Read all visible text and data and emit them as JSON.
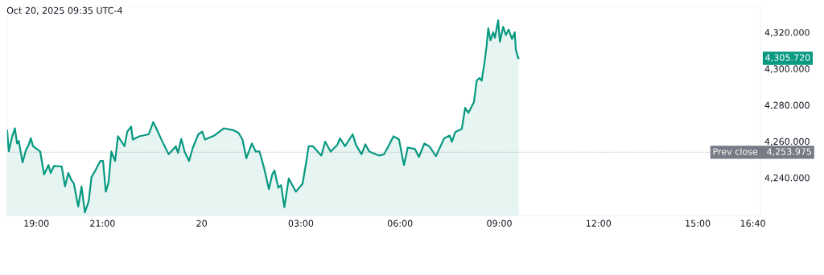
{
  "chart_data": {
    "type": "area",
    "annotations": [
      "Oct 20, 2025 09:35 UTC-4",
      "4,305.720"
    ],
    "x": [
      "2025-10-19T18:07",
      "2025-10-19T18:10",
      "2025-10-19T18:16",
      "2025-10-19T18:21",
      "2025-10-19T18:25",
      "2025-10-19T18:28",
      "2025-10-19T18:35",
      "2025-10-19T18:41",
      "2025-10-19T18:46",
      "2025-10-19T18:50",
      "2025-10-19T18:54",
      "2025-10-19T19:07",
      "2025-10-19T19:14",
      "2025-10-19T19:22",
      "2025-10-19T19:26",
      "2025-10-19T19:32",
      "2025-10-19T19:46",
      "2025-10-19T19:52",
      "2025-10-19T19:58",
      "2025-10-19T20:03",
      "2025-10-19T20:08",
      "2025-10-19T20:16",
      "2025-10-19T20:22",
      "2025-10-19T20:28",
      "2025-10-19T20:35",
      "2025-10-19T20:40",
      "2025-10-19T20:47",
      "2025-10-19T20:56",
      "2025-10-19T21:01",
      "2025-10-19T21:06",
      "2025-10-19T21:11",
      "2025-10-19T21:16",
      "2025-10-19T21:23",
      "2025-10-19T21:28",
      "2025-10-19T21:40",
      "2025-10-19T21:45",
      "2025-10-19T21:52",
      "2025-10-19T21:55",
      "2025-10-19T22:07",
      "2025-10-19T22:24",
      "2025-10-19T22:32",
      "2025-10-19T22:38",
      "2025-10-19T22:48",
      "2025-10-19T23:00",
      "2025-10-19T23:13",
      "2025-10-19T23:17",
      "2025-10-19T23:23",
      "2025-10-19T23:29",
      "2025-10-19T23:37",
      "2025-10-19T23:44",
      "2025-10-19T23:54",
      "2025-10-20T00:01",
      "2025-10-20T00:06",
      "2025-10-20T00:23",
      "2025-10-20T00:40",
      "2025-10-20T00:57",
      "2025-10-20T01:07",
      "2025-10-20T01:14",
      "2025-10-20T01:21",
      "2025-10-20T01:31",
      "2025-10-20T01:38",
      "2025-10-20T01:45",
      "2025-10-20T01:53",
      "2025-10-20T02:02",
      "2025-10-20T02:08",
      "2025-10-20T02:12",
      "2025-10-20T02:19",
      "2025-10-20T02:24",
      "2025-10-20T02:30",
      "2025-10-20T02:38",
      "2025-10-20T02:51",
      "2025-10-20T03:03",
      "2025-10-20T03:10",
      "2025-10-20T03:14",
      "2025-10-20T03:22",
      "2025-10-20T03:37",
      "2025-10-20T03:44",
      "2025-10-20T03:54",
      "2025-10-20T04:06",
      "2025-10-20T04:11",
      "2025-10-20T04:20",
      "2025-10-20T04:34",
      "2025-10-20T04:40",
      "2025-10-20T04:50",
      "2025-10-20T04:57",
      "2025-10-20T05:04",
      "2025-10-20T05:22",
      "2025-10-20T05:31",
      "2025-10-20T05:40",
      "2025-10-20T05:48",
      "2025-10-20T05:58",
      "2025-10-20T06:07",
      "2025-10-20T06:14",
      "2025-10-20T06:27",
      "2025-10-20T06:34",
      "2025-10-20T06:44",
      "2025-10-20T06:53",
      "2025-10-20T07:05",
      "2025-10-20T07:20",
      "2025-10-20T07:30",
      "2025-10-20T07:34",
      "2025-10-20T07:40",
      "2025-10-20T07:52",
      "2025-10-20T07:58",
      "2025-10-20T08:04",
      "2025-10-20T08:14",
      "2025-10-20T08:19",
      "2025-10-20T08:24",
      "2025-10-20T08:28",
      "2025-10-20T08:33",
      "2025-10-20T08:37",
      "2025-10-20T08:40",
      "2025-10-20T08:44",
      "2025-10-20T08:49",
      "2025-10-20T08:52",
      "2025-10-20T08:58",
      "2025-10-20T09:01",
      "2025-10-20T09:07",
      "2025-10-20T09:12",
      "2025-10-20T09:17",
      "2025-10-20T09:23",
      "2025-10-20T09:28",
      "2025-10-20T09:30",
      "2025-10-20T09:34",
      "2025-10-20T09:35"
    ],
    "series": [
      {
        "color": "#089981",
        "values": [
          4266.2,
          4254.5,
          4262.5,
          4267.2,
          4258.9,
          4260.3,
          4248.4,
          4255.1,
          4258.0,
          4261.7,
          4257.3,
          4254.4,
          4241.8,
          4247.0,
          4242.6,
          4246.5,
          4246.2,
          4235.2,
          4242.6,
          4239.0,
          4236.8,
          4224.1,
          4235.2,
          4220.9,
          4227.1,
          4240.3,
          4244.0,
          4249.2,
          4249.2,
          4232.3,
          4237.4,
          4254.4,
          4249.2,
          4262.8,
          4257.3,
          4265.4,
          4268.1,
          4261.0,
          4262.8,
          4263.9,
          4270.6,
          4266.9,
          4260.3,
          4252.9,
          4257.3,
          4253.6,
          4261.3,
          4254.4,
          4249.2,
          4256.6,
          4263.9,
          4265.4,
          4261.0,
          4263.2,
          4267.2,
          4266.2,
          4264.7,
          4261.0,
          4250.7,
          4258.8,
          4254.4,
          4254.4,
          4245.5,
          4233.7,
          4241.8,
          4244.0,
          4234.5,
          4235.9,
          4223.8,
          4239.6,
          4232.3,
          4236.7,
          4249.2,
          4257.3,
          4257.3,
          4252.2,
          4259.8,
          4254.4,
          4258.0,
          4261.7,
          4257.3,
          4263.9,
          4258.0,
          4252.9,
          4258.4,
          4254.4,
          4252.2,
          4252.9,
          4258.0,
          4262.8,
          4261.0,
          4247.0,
          4256.6,
          4255.8,
          4251.4,
          4258.8,
          4257.3,
          4251.9,
          4261.7,
          4263.2,
          4259.8,
          4265.1,
          4266.9,
          4278.4,
          4275.7,
          4281.6,
          4293.4,
          4294.9,
          4293.4,
          4303.1,
          4312.6,
          4322.2,
          4315.6,
          4320.0,
          4317.0,
          4326.6,
          4314.8,
          4323.0,
          4318.5,
          4321.5,
          4316.3,
          4320.0,
          4310.4,
          4306.0,
          4305.7
        ]
      }
    ],
    "xlim": [
      "2025-10-19T18:06",
      "2025-10-20T16:54"
    ],
    "xticks": [
      {
        "value": "2025-10-19T19:00",
        "label": "19:00"
      },
      {
        "value": "2025-10-19T21:00",
        "label": "21:00"
      },
      {
        "value": "2025-10-20T00:00",
        "label": "20"
      },
      {
        "value": "2025-10-20T03:00",
        "label": "03:00"
      },
      {
        "value": "2025-10-20T06:00",
        "label": "06:00"
      },
      {
        "value": "2025-10-20T09:00",
        "label": "09:00"
      },
      {
        "value": "2025-10-20T12:00",
        "label": "12:00"
      },
      {
        "value": "2025-10-20T15:00",
        "label": "15:00"
      },
      {
        "value": "2025-10-20T16:40",
        "label": "16:40"
      }
    ],
    "ylim": [
      4219,
      4334
    ],
    "yticks": [
      {
        "value": 4240,
        "label": "4,240.000"
      },
      {
        "value": 4260,
        "label": "4,260.000"
      },
      {
        "value": 4280,
        "label": "4,280.000"
      },
      {
        "value": 4300,
        "label": "4,300.000"
      },
      {
        "value": 4320,
        "label": "4,320.000"
      }
    ],
    "ref_lines": [
      {
        "axis": "y",
        "value": 4253.975,
        "label": "Prev close   4,253.975",
        "color": "#787b86",
        "line_style": "dotted"
      }
    ],
    "grid": false
  }
}
